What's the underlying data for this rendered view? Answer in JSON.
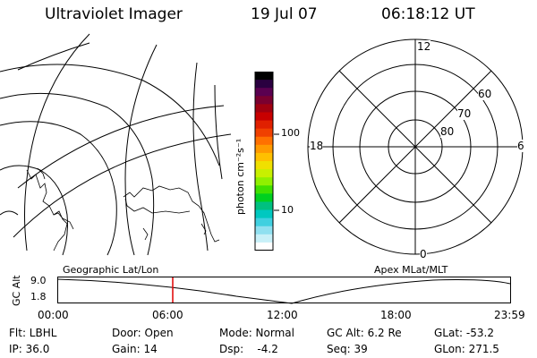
{
  "header": {
    "title": "Ultraviolet Imager",
    "date": "19 Jul 07",
    "time": "06:18:12 UT"
  },
  "colorbar": {
    "unit_label": "photon cm⁻²s⁻¹",
    "ticks": [
      "100",
      "10"
    ],
    "colors": [
      "#000000",
      "#2a0040",
      "#5a0050",
      "#7a0030",
      "#a00010",
      "#c80000",
      "#e02000",
      "#f04000",
      "#ff7000",
      "#ff9a00",
      "#ffc000",
      "#f0e000",
      "#c8f000",
      "#90f000",
      "#40e000",
      "#00d020",
      "#00c080",
      "#00c8c0",
      "#40d0e0",
      "#90e0f0",
      "#c8f0f8",
      "#ffffff"
    ]
  },
  "polar": {
    "lat_labels": [
      "60",
      "70",
      "80"
    ],
    "mlt_labels": {
      "top": "12",
      "bottom": "0",
      "left": "18",
      "right": "6"
    }
  },
  "timeline": {
    "left_label": "Geographic Lat/Lon",
    "right_label": "Apex  MLat/MLT",
    "axis_label": "GC Alt",
    "y_ticks": [
      "9.0",
      "1.8"
    ],
    "x_ticks": [
      "00:00",
      "06:00",
      "12:00",
      "18:00",
      "23:59"
    ],
    "marker_color": "#e00000"
  },
  "footer": {
    "row1": [
      "Flt: LBHL",
      "Door: Open",
      "Mode: Normal",
      "GC Alt: 6.2 Re",
      "GLat: -53.2"
    ],
    "row2": [
      "IP: 36.0",
      "Gain: 14",
      "Dsp:    -4.2",
      "Seq: 39",
      "GLon: 271.5"
    ]
  }
}
